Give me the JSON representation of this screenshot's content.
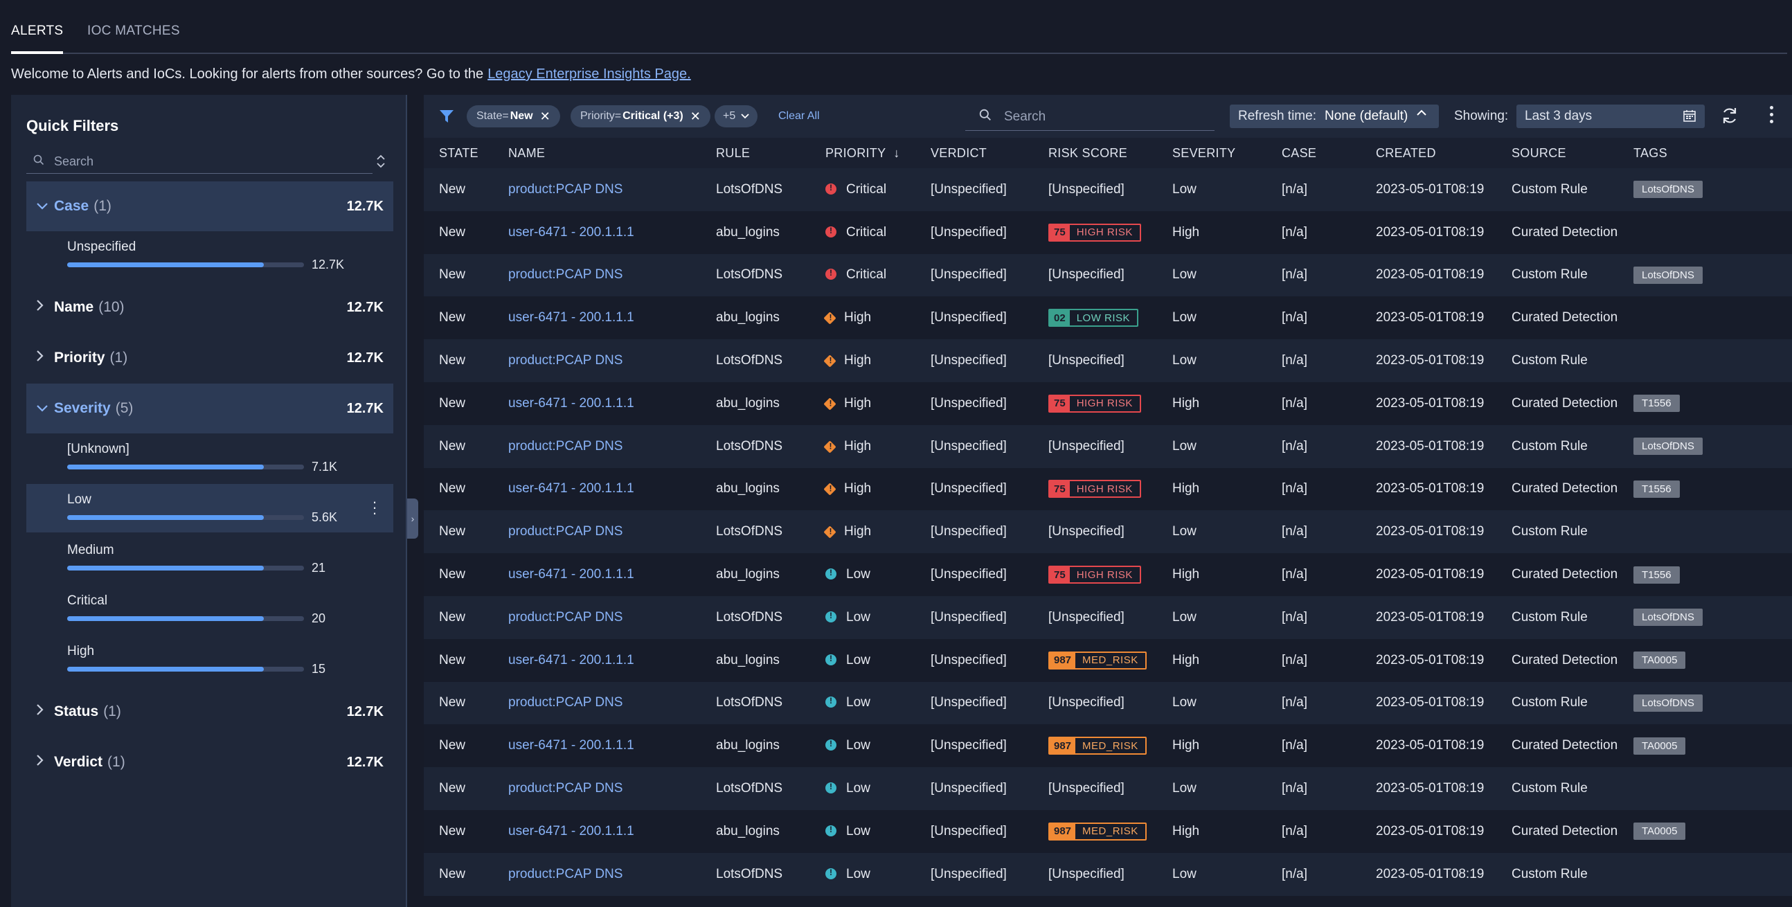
{
  "tabs": [
    {
      "label": "ALERTS",
      "active": true
    },
    {
      "label": "IOC MATCHES",
      "active": false
    }
  ],
  "welcome": {
    "text": "Welcome to Alerts and IoCs. Looking for alerts from other sources? Go to the",
    "link": "Legacy Enterprise Insights Page."
  },
  "sidebar": {
    "title": "Quick Filters",
    "search_placeholder": "Search",
    "groups": [
      {
        "name": "Case",
        "count": "(1)",
        "total": "12.7K",
        "open": true,
        "items": [
          {
            "label": "Unspecified",
            "value": "12.7K",
            "fill": 0.83
          }
        ]
      },
      {
        "name": "Name",
        "count": "(10)",
        "total": "12.7K",
        "open": false
      },
      {
        "name": "Priority",
        "count": "(1)",
        "total": "12.7K",
        "open": false
      },
      {
        "name": "Severity",
        "count": "(5)",
        "total": "12.7K",
        "open": true,
        "items": [
          {
            "label": "[Unknown]",
            "value": "7.1K",
            "fill": 0.83
          },
          {
            "label": "Low",
            "value": "5.6K",
            "fill": 0.83
          },
          {
            "label": "Medium",
            "value": "21",
            "fill": 0.83
          },
          {
            "label": "Critical",
            "value": "20",
            "fill": 0.83
          },
          {
            "label": "High",
            "value": "15",
            "fill": 0.83
          }
        ]
      },
      {
        "name": "Status",
        "count": "(1)",
        "total": "12.7K",
        "open": false
      },
      {
        "name": "Verdict",
        "count": "(1)",
        "total": "12.7K",
        "open": false
      }
    ]
  },
  "toolbar": {
    "chips": [
      {
        "key": "State",
        "op": " = ",
        "value": "New"
      },
      {
        "key": "Priority",
        "op": " = ",
        "value": "Critical (+3)"
      },
      {
        "key": "",
        "op": "",
        "value": "+5"
      }
    ],
    "clear_all": "Clear All",
    "search_placeholder": "Search",
    "refresh_label": "Refresh time:",
    "refresh_value": "None (default)",
    "showing_label": "Showing:",
    "showing_value": "Last 3 days"
  },
  "colors": {
    "accent": "#8ab4f8",
    "critical": "#e5484d",
    "high": "#f08a35",
    "low": "#3db6c8",
    "low_risk": "#3aa08d"
  },
  "table": {
    "columns": [
      "STATE",
      "NAME",
      "RULE",
      "PRIORITY",
      "VERDICT",
      "RISK SCORE",
      "SEVERITY",
      "CASE",
      "CREATED",
      "SOURCE",
      "TAGS"
    ],
    "sort_indicator": "↓",
    "rows": [
      {
        "state": "New",
        "name": "product:PCAP DNS",
        "rule": "LotsOfDNS",
        "priority": "Critical",
        "pclass": "crit",
        "verdict": "[Unspecified]",
        "risk_text": "[Unspecified]",
        "severity": "Low",
        "case": "[n/a]",
        "created": "2023-05-01T08:19",
        "source": "Custom Rule",
        "tag": "LotsOfDNS"
      },
      {
        "state": "New",
        "name": "user-6471 - 200.1.1.1",
        "rule": "abu_logins",
        "priority": "Critical",
        "pclass": "crit",
        "verdict": "[Unspecified]",
        "risk_num": "75",
        "risk_label": "HIGH RISK",
        "rclass": "high",
        "severity": "High",
        "case": "[n/a]",
        "created": "2023-05-01T08:19",
        "source": "Curated Detections",
        "tag": ""
      },
      {
        "state": "New",
        "name": "product:PCAP DNS",
        "rule": "LotsOfDNS",
        "priority": "Critical",
        "pclass": "crit",
        "verdict": "[Unspecified]",
        "risk_text": "[Unspecified]",
        "severity": "Low",
        "case": "[n/a]",
        "created": "2023-05-01T08:19",
        "source": "Custom Rule",
        "tag": "LotsOfDNS"
      },
      {
        "state": "New",
        "name": "user-6471 - 200.1.1.1",
        "rule": "abu_logins",
        "priority": "High",
        "pclass": "high",
        "verdict": "[Unspecified]",
        "risk_num": "02",
        "risk_label": "LOW RISK",
        "rclass": "low",
        "severity": "Low",
        "case": "[n/a]",
        "created": "2023-05-01T08:19",
        "source": "Curated Detections",
        "tag": ""
      },
      {
        "state": "New",
        "name": "product:PCAP DNS",
        "rule": "LotsOfDNS",
        "priority": "High",
        "pclass": "high",
        "verdict": "[Unspecified]",
        "risk_text": "[Unspecified]",
        "severity": "Low",
        "case": "[n/a]",
        "created": "2023-05-01T08:19",
        "source": "Custom Rule",
        "tag": ""
      },
      {
        "state": "New",
        "name": "user-6471 - 200.1.1.1",
        "rule": "abu_logins",
        "priority": "High",
        "pclass": "high",
        "verdict": "[Unspecified]",
        "risk_num": "75",
        "risk_label": "HIGH RISK",
        "rclass": "high",
        "severity": "High",
        "case": "[n/a]",
        "created": "2023-05-01T08:19",
        "source": "Curated Detections",
        "tag": "T1556"
      },
      {
        "state": "New",
        "name": "product:PCAP DNS",
        "rule": "LotsOfDNS",
        "priority": "High",
        "pclass": "high",
        "verdict": "[Unspecified]",
        "risk_text": "[Unspecified]",
        "severity": "Low",
        "case": "[n/a]",
        "created": "2023-05-01T08:19",
        "source": "Custom Rule",
        "tag": "LotsOfDNS"
      },
      {
        "state": "New",
        "name": "user-6471 - 200.1.1.1",
        "rule": "abu_logins",
        "priority": "High",
        "pclass": "high",
        "verdict": "[Unspecified]",
        "risk_num": "75",
        "risk_label": "HIGH RISK",
        "rclass": "high",
        "severity": "High",
        "case": "[n/a]",
        "created": "2023-05-01T08:19",
        "source": "Curated Detections",
        "tag": "T1556"
      },
      {
        "state": "New",
        "name": "product:PCAP DNS",
        "rule": "LotsOfDNS",
        "priority": "High",
        "pclass": "high",
        "verdict": "[Unspecified]",
        "risk_text": "[Unspecified]",
        "severity": "Low",
        "case": "[n/a]",
        "created": "2023-05-01T08:19",
        "source": "Custom Rule",
        "tag": ""
      },
      {
        "state": "New",
        "name": "user-6471 - 200.1.1.1",
        "rule": "abu_logins",
        "priority": "Low",
        "pclass": "low",
        "verdict": "[Unspecified]",
        "risk_num": "75",
        "risk_label": "HIGH RISK",
        "rclass": "high",
        "severity": "High",
        "case": "[n/a]",
        "created": "2023-05-01T08:19",
        "source": "Curated Detections",
        "tag": "T1556"
      },
      {
        "state": "New",
        "name": "product:PCAP DNS",
        "rule": "LotsOfDNS",
        "priority": "Low",
        "pclass": "low",
        "verdict": "[Unspecified]",
        "risk_text": "[Unspecified]",
        "severity": "Low",
        "case": "[n/a]",
        "created": "2023-05-01T08:19",
        "source": "Custom Rule",
        "tag": "LotsOfDNS"
      },
      {
        "state": "New",
        "name": "user-6471 - 200.1.1.1",
        "rule": "abu_logins",
        "priority": "Low",
        "pclass": "low",
        "verdict": "[Unspecified]",
        "risk_num": "987",
        "risk_label": "MED_RISK",
        "rclass": "med",
        "severity": "High",
        "case": "[n/a]",
        "created": "2023-05-01T08:19",
        "source": "Curated Detections",
        "tag": "TA0005"
      },
      {
        "state": "New",
        "name": "product:PCAP DNS",
        "rule": "LotsOfDNS",
        "priority": "Low",
        "pclass": "low",
        "verdict": "[Unspecified]",
        "risk_text": "[Unspecified]",
        "severity": "Low",
        "case": "[n/a]",
        "created": "2023-05-01T08:19",
        "source": "Custom Rule",
        "tag": "LotsOfDNS"
      },
      {
        "state": "New",
        "name": "user-6471 - 200.1.1.1",
        "rule": "abu_logins",
        "priority": "Low",
        "pclass": "low",
        "verdict": "[Unspecified]",
        "risk_num": "987",
        "risk_label": "MED_RISK",
        "rclass": "med",
        "severity": "High",
        "case": "[n/a]",
        "created": "2023-05-01T08:19",
        "source": "Curated Detections",
        "tag": "TA0005"
      },
      {
        "state": "New",
        "name": "product:PCAP DNS",
        "rule": "LotsOfDNS",
        "priority": "Low",
        "pclass": "low",
        "verdict": "[Unspecified]",
        "risk_text": "[Unspecified]",
        "severity": "Low",
        "case": "[n/a]",
        "created": "2023-05-01T08:19",
        "source": "Custom Rule",
        "tag": ""
      },
      {
        "state": "New",
        "name": "user-6471 - 200.1.1.1",
        "rule": "abu_logins",
        "priority": "Low",
        "pclass": "low",
        "verdict": "[Unspecified]",
        "risk_num": "987",
        "risk_label": "MED_RISK",
        "rclass": "med",
        "severity": "High",
        "case": "[n/a]",
        "created": "2023-05-01T08:19",
        "source": "Curated Detections",
        "tag": "TA0005"
      },
      {
        "state": "New",
        "name": "product:PCAP DNS",
        "rule": "LotsOfDNS",
        "priority": "Low",
        "pclass": "low",
        "verdict": "[Unspecified]",
        "risk_text": "[Unspecified]",
        "severity": "Low",
        "case": "[n/a]",
        "created": "2023-05-01T08:19",
        "source": "Custom Rule",
        "tag": ""
      }
    ]
  }
}
